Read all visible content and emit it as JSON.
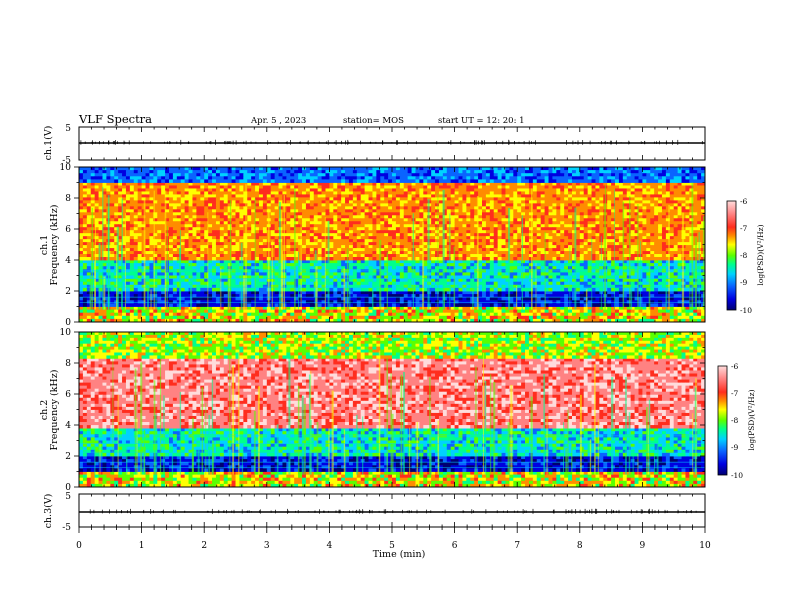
{
  "header": {
    "title": "VLF Spectra",
    "date": "Apr. 5 , 2023",
    "station": "station= MOS",
    "start": "start  UT =   12: 20: 1"
  },
  "colors": {
    "spectrum": [
      "#000070",
      "#0000e0",
      "#0a64ff",
      "#00d2ff",
      "#00ff8c",
      "#5aff00",
      "#ffff00",
      "#ff8c00",
      "#ff2d1e",
      "#ff8282",
      "#ffdcdc"
    ]
  },
  "chart_data": [
    {
      "type": "line",
      "id": "ch1-waveform",
      "ylabel": "ch.1(V)",
      "ylim": [
        -5,
        5
      ],
      "y_tick_labels": [
        "5",
        "-5"
      ],
      "x": [
        0,
        10
      ],
      "y": [
        0,
        0
      ]
    },
    {
      "type": "heatmap",
      "id": "ch1-spectrogram",
      "ylabel": "ch.1\nFrequency (kHz)",
      "ylabel_line1": "ch.1",
      "ylabel_line2": "Frequency (kHz)",
      "ylim": [
        0,
        10
      ],
      "y_tick_labels": [
        "0",
        "2",
        "4",
        "6",
        "8",
        "10"
      ],
      "colorbar": {
        "label": "log(PSD)(V²/Hz)",
        "range": [
          -10,
          -6
        ],
        "tick_labels": [
          "-6",
          "-7",
          "-8",
          "-9",
          "-10"
        ]
      },
      "bands_khz": [
        {
          "from": 0,
          "to": 1,
          "level": "green-red"
        },
        {
          "from": 1,
          "to": 2,
          "level": "dark-blue"
        },
        {
          "from": 2,
          "to": 4,
          "level": "cyan-green"
        },
        {
          "from": 4,
          "to": 9,
          "level": "red-yellow"
        },
        {
          "from": 9,
          "to": 10,
          "level": "blue-cyan"
        }
      ]
    },
    {
      "type": "heatmap",
      "id": "ch2-spectrogram",
      "ylabel": "ch.2\nFrequency (kHz)",
      "ylabel_line1": "ch.2",
      "ylabel_line2": "Frequency (kHz)",
      "ylim": [
        0,
        10
      ],
      "y_tick_labels": [
        "0",
        "2",
        "4",
        "6",
        "8",
        "10"
      ],
      "colorbar": {
        "label": "log(PSD)(V²/Hz)",
        "range": [
          -10,
          -6
        ],
        "tick_labels": [
          "-6",
          "-7",
          "-8",
          "-9",
          "-10"
        ]
      },
      "bands_khz": [
        {
          "from": 0,
          "to": 1,
          "level": "green-red"
        },
        {
          "from": 1,
          "to": 2,
          "level": "dark-blue"
        },
        {
          "from": 2,
          "to": 3.8,
          "level": "cyan-green"
        },
        {
          "from": 3.8,
          "to": 8.3,
          "level": "pink-red"
        },
        {
          "from": 8.3,
          "to": 10,
          "level": "yellow-green"
        }
      ]
    },
    {
      "type": "line",
      "id": "ch3-waveform",
      "ylabel": "ch.3(V)",
      "ylim": [
        -5,
        5
      ],
      "y_tick_labels": [
        "5",
        "-5"
      ],
      "x": [
        0,
        10
      ],
      "y": [
        0,
        0
      ]
    }
  ],
  "x_axis": {
    "label": "Time  (min)",
    "range": [
      0,
      10
    ],
    "tick_labels": [
      "0",
      "1",
      "2",
      "3",
      "4",
      "5",
      "6",
      "7",
      "8",
      "9",
      "10"
    ]
  }
}
